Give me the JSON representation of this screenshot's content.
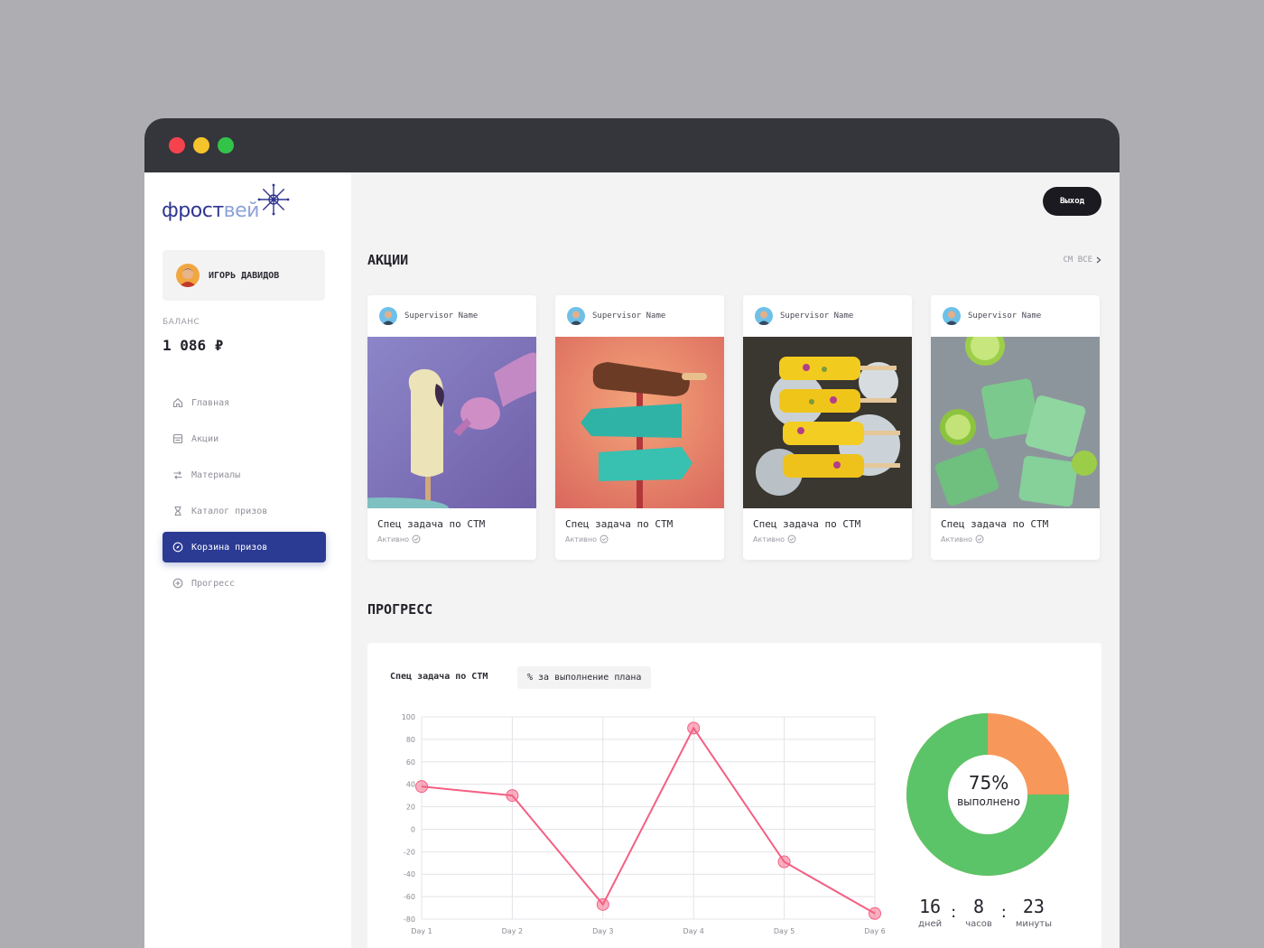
{
  "window": {
    "controls": [
      "close",
      "minimize",
      "maximize"
    ]
  },
  "sidebar": {
    "logo": {
      "part1": "фрост",
      "part2": "вей",
      "icon": "snowflake-icon"
    },
    "user": {
      "name": "ИГОРЬ ДАВИДОВ"
    },
    "balance": {
      "label": "БАЛАНС",
      "value": "1 086 ₽"
    },
    "nav": [
      {
        "label": "Главная",
        "icon": "home-icon"
      },
      {
        "label": "Акции",
        "icon": "stock-icon"
      },
      {
        "label": "Материалы",
        "icon": "materials-icon"
      },
      {
        "label": "Каталог призов",
        "icon": "hourglass-icon"
      },
      {
        "label": "Корзина призов",
        "icon": "compass-icon",
        "active": true
      },
      {
        "label": "Прогресс",
        "icon": "plus-circle-icon"
      }
    ]
  },
  "header": {
    "logout_label": "Выход"
  },
  "promotions": {
    "title": "АКЦИИ",
    "see_all": "СМ ВСЕ",
    "cards": [
      {
        "supervisor": "Supervisor Name",
        "title": "Спец задача по СТМ",
        "status": "Активно"
      },
      {
        "supervisor": "Supervisor Name",
        "title": "Спец задача по СТМ",
        "status": "Активно"
      },
      {
        "supervisor": "Supervisor Name",
        "title": "Спец задача по СТМ",
        "status": "Активно"
      },
      {
        "supervisor": "Supervisor Name",
        "title": "Спец задача по СТМ",
        "status": "Активно"
      }
    ]
  },
  "progress": {
    "title": "ПРОГРЕСС",
    "panel_title": "Спец задача по СТМ",
    "tag": "% за выполнение плана",
    "donut": {
      "percent_text": "75%",
      "label": "выполнено",
      "completed": 0.75,
      "colors": {
        "done": "#5bc468",
        "rest": "#f8975a"
      }
    },
    "timer": {
      "days": {
        "value": "16",
        "label": "дней"
      },
      "hours": {
        "value": "8",
        "label": "часов"
      },
      "minutes": {
        "value": "23",
        "label": "минуты"
      },
      "separator": ":"
    }
  },
  "chart_data": {
    "type": "line",
    "categories": [
      "Day 1",
      "Day 2",
      "Day 3",
      "Day 4",
      "Day 5",
      "Day 6"
    ],
    "series": [
      {
        "values": [
          38,
          30,
          -67,
          90,
          -29,
          -75
        ],
        "color": "#f45f82"
      }
    ],
    "ylim": [
      -80,
      100
    ],
    "yticks": [
      100,
      80,
      60,
      40,
      20,
      0,
      -20,
      -40,
      -60,
      -80
    ],
    "grid": true
  }
}
